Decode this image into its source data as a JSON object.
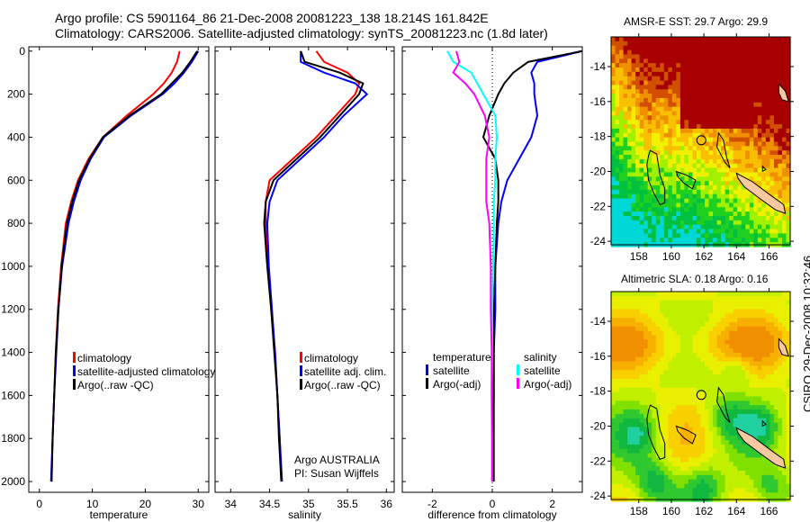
{
  "header": {
    "line1": "Argo profile: CS 5901164_86 21-Dec-2008 20081223_138 18.214S 161.842E",
    "line2": "Climatology: CARS2006. Satellite-adjusted climatology: synTS_20081223.nc (1.8d later)"
  },
  "credit": "CSIRO 29-Dec-2008 10:32:46",
  "colors": {
    "climatology": "#ff0000",
    "satellite": "#0000ff",
    "argo": "#000000",
    "sal_sat": "#00ffff",
    "sal_argo": "#ff00ff"
  },
  "chart_data": [
    {
      "type": "line",
      "id": "temperature",
      "xlabel": "temperature",
      "xlim": [
        -2,
        32
      ],
      "xticks": [
        0,
        10,
        20,
        30
      ],
      "ylim": [
        2050,
        -20
      ],
      "yticks": [
        0,
        200,
        400,
        600,
        800,
        1000,
        1200,
        1400,
        1600,
        1800,
        2000
      ],
      "depth": [
        0,
        50,
        100,
        150,
        200,
        300,
        400,
        500,
        600,
        700,
        800,
        1000,
        1200,
        1400,
        1600,
        1800,
        2000
      ],
      "series": [
        {
          "name": "climatology",
          "color": "#ff0000",
          "values": [
            26.5,
            26,
            25,
            23.5,
            21.5,
            16.5,
            12,
            9.3,
            7.3,
            6,
            5,
            4.1,
            3.5,
            3.1,
            2.8,
            2.5,
            2.3
          ]
        },
        {
          "name": "satellite-adjusted climatology",
          "color": "#0000ff",
          "values": [
            30,
            28.8,
            27.3,
            25.5,
            23.3,
            17.3,
            12.2,
            9.7,
            7.8,
            6.5,
            5.5,
            4.3,
            3.6,
            3.2,
            2.8,
            2.5,
            2.2
          ]
        },
        {
          "name": "Argo(..raw -QC)",
          "color": "#000000",
          "values": [
            29.8,
            28.5,
            27,
            25,
            23,
            17,
            12,
            9.5,
            7.5,
            6.2,
            5.2,
            4.2,
            3.6,
            3.1,
            2.8,
            2.5,
            2.3
          ]
        }
      ]
    },
    {
      "type": "line",
      "id": "salinity",
      "xlabel": "salinity",
      "xlim": [
        33.8,
        36.1
      ],
      "xticks": [
        34,
        34.5,
        35,
        35.5,
        36
      ],
      "ylim": [
        2050,
        -20
      ],
      "depth": [
        0,
        50,
        100,
        150,
        200,
        300,
        400,
        500,
        600,
        700,
        800,
        1000,
        1200,
        1400,
        1600,
        1800,
        2000
      ],
      "series": [
        {
          "name": "climatology",
          "color": "#ff0000",
          "values": [
            35.1,
            35.2,
            35.5,
            35.65,
            35.6,
            35.35,
            35.1,
            34.8,
            34.5,
            34.45,
            34.45,
            34.48,
            34.52,
            34.57,
            34.6,
            34.63,
            34.65
          ]
        },
        {
          "name": "satellite adj. clim.",
          "color": "#0000ff",
          "values": [
            34.9,
            34.9,
            35.2,
            35.6,
            35.75,
            35.45,
            35.2,
            34.9,
            34.6,
            34.5,
            34.47,
            34.49,
            34.53,
            34.57,
            34.6,
            34.63,
            34.66
          ]
        },
        {
          "name": "Argo(..raw -QC)",
          "color": "#000000",
          "values": [
            34.9,
            34.95,
            35.4,
            35.7,
            35.65,
            35.4,
            35.15,
            34.85,
            34.55,
            34.45,
            34.43,
            34.47,
            34.52,
            34.56,
            34.6,
            34.62,
            34.65
          ]
        }
      ],
      "annotation": [
        "Argo AUSTRALIA",
        "PI: Susan Wijffels"
      ]
    },
    {
      "type": "line",
      "id": "difference",
      "xlabel": "difference from climatology",
      "xlim": [
        -3,
        3
      ],
      "xticks": [
        -2,
        0,
        2
      ],
      "ylim": [
        2050,
        -20
      ],
      "depth": [
        0,
        50,
        100,
        150,
        200,
        300,
        400,
        500,
        600,
        700,
        800,
        1000,
        1200,
        1400,
        1600,
        1800,
        2000
      ],
      "legend_headers": [
        "temperature",
        "salinity"
      ],
      "series": [
        {
          "name": "satellite",
          "group": "temperature",
          "color": "#0000ff",
          "values": [
            3,
            1.5,
            1.3,
            1.4,
            1.4,
            1.5,
            1.3,
            0.9,
            0.5,
            0.3,
            0.2,
            0.1,
            0.1,
            0.05,
            0.05,
            0.03,
            0.02
          ]
        },
        {
          "name": "Argo(-adj)",
          "group": "temperature",
          "color": "#000000",
          "values": [
            3,
            1.2,
            0.7,
            0.4,
            0.2,
            -0.1,
            -0.3,
            0.1,
            0.2,
            0.2,
            0.15,
            0.1,
            0.05,
            0.05,
            0.05,
            0.05,
            0.05
          ]
        },
        {
          "name": "satellite",
          "group": "salinity",
          "color": "#00ffff",
          "values": [
            -1.5,
            -1.3,
            -0.7,
            -0.5,
            -0.3,
            0.1,
            0.15,
            0.1,
            0.1,
            0.05,
            0.05,
            0.03,
            0,
            0,
            -0.02,
            -0.02,
            -0.02
          ]
        },
        {
          "name": "Argo(-adj)",
          "group": "salinity",
          "color": "#ff00ff",
          "values": [
            -1.2,
            -1.1,
            -1.3,
            -0.9,
            -0.6,
            -0.25,
            -0.1,
            -0.2,
            -0.2,
            -0.2,
            -0.1,
            -0.05,
            -0.05,
            -0.02,
            -0.02,
            0,
            0
          ]
        }
      ]
    },
    {
      "type": "heatmap",
      "id": "sst-map",
      "title": "AMSR-E SST: 29.7 Argo: 29.9",
      "xlim": [
        156.3,
        167.3
      ],
      "xticks": [
        158,
        160,
        162,
        164,
        166
      ],
      "ylim": [
        -24.2,
        -12.3
      ],
      "yticks": [
        -14,
        -16,
        -18,
        -20,
        -22,
        -24
      ],
      "argo_position": {
        "lon": 161.842,
        "lat": -18.214
      }
    },
    {
      "type": "heatmap",
      "id": "sla-map",
      "title": "Altimetric SLA: 0.18 Argo: 0.16",
      "xlim": [
        156.3,
        167.3
      ],
      "xticks": [
        158,
        160,
        162,
        164,
        166
      ],
      "ylim": [
        -24.2,
        -12.3
      ],
      "yticks": [
        -14,
        -16,
        -18,
        -20,
        -22,
        -24
      ],
      "argo_position": {
        "lon": 161.842,
        "lat": -18.214
      }
    }
  ]
}
